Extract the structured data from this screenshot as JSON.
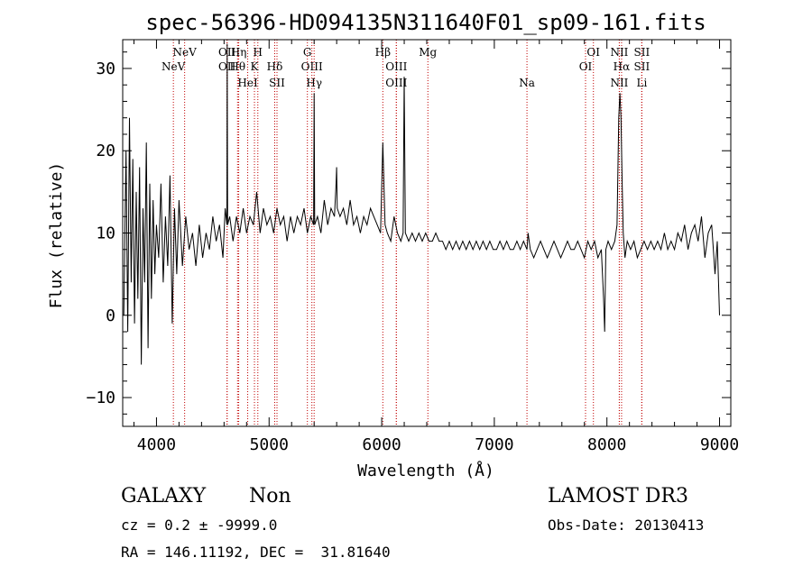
{
  "chart_data": {
    "type": "line",
    "title": "spec-56396-HD094135N311640F01_sp09-161.fits",
    "xlabel": "Wavelength (Å)",
    "ylabel": "Flux (relative)",
    "xlim": [
      3700,
      9100
    ],
    "ylim": [
      -13.5,
      33.5
    ],
    "xticks": [
      4000,
      5000,
      6000,
      7000,
      8000,
      9000
    ],
    "yticks": [
      -10,
      0,
      10,
      20,
      30
    ],
    "grid": false,
    "line_color": "#000000",
    "marker_color": "#c00000",
    "spectral_lines": [
      {
        "label": "NeV",
        "wavelength": 4150,
        "row": 1
      },
      {
        "label": "NeV",
        "wavelength": 4250,
        "row": 0
      },
      {
        "label": "OII",
        "wavelength": 4627,
        "row": 1
      },
      {
        "label": "OII",
        "wavelength": 4627,
        "row": 0
      },
      {
        "label": "Hη",
        "wavelength": 4730,
        "row": 0
      },
      {
        "label": "Hθ",
        "wavelength": 4720,
        "row": 1
      },
      {
        "label": "HeI",
        "wavelength": 4810,
        "row": 2
      },
      {
        "label": "H",
        "wavelength": 4900,
        "row": 0
      },
      {
        "label": "K",
        "wavelength": 4870,
        "row": 1
      },
      {
        "label": "Hδ",
        "wavelength": 5050,
        "row": 1
      },
      {
        "label": "SII",
        "wavelength": 5070,
        "row": 2
      },
      {
        "label": "G",
        "wavelength": 5340,
        "row": 0
      },
      {
        "label": "OIII",
        "wavelength": 5380,
        "row": 1
      },
      {
        "label": "Hγ",
        "wavelength": 5400,
        "row": 2
      },
      {
        "label": "Hβ",
        "wavelength": 6010,
        "row": 0
      },
      {
        "label": "OIII",
        "wavelength": 6130,
        "row": 1
      },
      {
        "label": "OIII",
        "wavelength": 6130,
        "row": 2
      },
      {
        "label": "Mg",
        "wavelength": 6410,
        "row": 0
      },
      {
        "label": "Na",
        "wavelength": 7290,
        "row": 2
      },
      {
        "label": "OI",
        "wavelength": 7880,
        "row": 0
      },
      {
        "label": "OI",
        "wavelength": 7810,
        "row": 1
      },
      {
        "label": "NII",
        "wavelength": 8110,
        "row": 0
      },
      {
        "label": "Hα",
        "wavelength": 8130,
        "row": 1
      },
      {
        "label": "NII",
        "wavelength": 8110,
        "row": 2
      },
      {
        "label": "SII",
        "wavelength": 8310,
        "row": 0
      },
      {
        "label": "SII",
        "wavelength": 8310,
        "row": 1
      },
      {
        "label": "Li",
        "wavelength": 8310,
        "row": 2
      }
    ],
    "series": [
      {
        "x": [
          3710,
          3730,
          3745,
          3760,
          3775,
          3790,
          3805,
          3820,
          3835,
          3850,
          3865,
          3880,
          3895,
          3910,
          3925,
          3940,
          3955,
          3970,
          3985,
          4000,
          4020,
          4040,
          4060,
          4080,
          4100,
          4120,
          4140,
          4160,
          4180,
          4200,
          4230,
          4260,
          4290,
          4320,
          4350,
          4380,
          4410,
          4440,
          4470,
          4500,
          4530,
          4560,
          4590,
          4610,
          4625,
          4628,
          4632,
          4650,
          4680,
          4710,
          4740,
          4770,
          4800,
          4830,
          4860,
          4890,
          4920,
          4950,
          4980,
          5010,
          5040,
          5070,
          5100,
          5130,
          5160,
          5190,
          5220,
          5250,
          5280,
          5310,
          5340,
          5370,
          5395,
          5400,
          5405,
          5430,
          5460,
          5490,
          5520,
          5550,
          5580,
          5595,
          5600,
          5605,
          5630,
          5660,
          5690,
          5720,
          5750,
          5780,
          5810,
          5840,
          5870,
          5900,
          5930,
          5960,
          5990,
          6010,
          6030,
          6050,
          6080,
          6110,
          6140,
          6170,
          6190,
          6200,
          6210,
          6240,
          6270,
          6300,
          6330,
          6360,
          6390,
          6420,
          6450,
          6480,
          6510,
          6540,
          6570,
          6600,
          6630,
          6660,
          6690,
          6720,
          6750,
          6780,
          6810,
          6840,
          6870,
          6900,
          6930,
          6960,
          6990,
          7020,
          7050,
          7080,
          7110,
          7140,
          7170,
          7200,
          7230,
          7260,
          7290,
          7300,
          7320,
          7350,
          7380,
          7410,
          7440,
          7470,
          7500,
          7530,
          7560,
          7590,
          7620,
          7650,
          7680,
          7710,
          7740,
          7770,
          7800,
          7830,
          7860,
          7890,
          7920,
          7950,
          7970,
          7980,
          7990,
          8010,
          8040,
          8070,
          8090,
          8105,
          8115,
          8125,
          8135,
          8145,
          8160,
          8180,
          8210,
          8240,
          8270,
          8300,
          8330,
          8360,
          8390,
          8420,
          8450,
          8480,
          8510,
          8540,
          8570,
          8600,
          8630,
          8660,
          8690,
          8720,
          8750,
          8780,
          8810,
          8840,
          8870,
          8900,
          8930,
          8960,
          8980,
          9000
        ],
        "y": [
          0,
          20,
          -2,
          24,
          4,
          19,
          -1,
          15,
          2,
          18,
          -6,
          13,
          4,
          21,
          -4,
          16,
          2,
          14,
          5,
          11,
          7,
          16,
          4,
          12,
          6,
          17,
          -1,
          13,
          5,
          14,
          6,
          12,
          8,
          10,
          6,
          11,
          7,
          10,
          8,
          12,
          9,
          11,
          7,
          13,
          11,
          33,
          11,
          12,
          9,
          12,
          10,
          13,
          10,
          12,
          11,
          15,
          10,
          13,
          11,
          12,
          10,
          13,
          11,
          12,
          9,
          12,
          10,
          12,
          11,
          13,
          10,
          12,
          11,
          27,
          11,
          12,
          10,
          14,
          11,
          13,
          12,
          16,
          18,
          13,
          12,
          13,
          11,
          14,
          11,
          12,
          10,
          12,
          11,
          13,
          12,
          11,
          10,
          21,
          11,
          10,
          9,
          12,
          10,
          9,
          10,
          29,
          10,
          9,
          10,
          9,
          10,
          9,
          10,
          9,
          9,
          10,
          9,
          9,
          8,
          9,
          8,
          9,
          8,
          9,
          8,
          9,
          8,
          9,
          8,
          9,
          8,
          9,
          8,
          8,
          9,
          8,
          9,
          8,
          8,
          9,
          8,
          9,
          8,
          10,
          8,
          7,
          8,
          9,
          8,
          7,
          8,
          9,
          8,
          7,
          8,
          9,
          8,
          8,
          9,
          8,
          7,
          9,
          8,
          9,
          7,
          8,
          2,
          -2,
          8,
          9,
          8,
          9,
          11,
          24,
          27,
          24,
          16,
          10,
          7,
          9,
          8,
          9,
          7,
          8,
          9,
          8,
          9,
          8,
          9,
          8,
          10,
          8,
          9,
          8,
          10,
          9,
          11,
          8,
          10,
          11,
          9,
          12,
          7,
          10,
          11,
          5,
          9,
          0
        ]
      }
    ]
  },
  "footer": {
    "object_class": "GALAXY",
    "subclass": "Non",
    "survey": "LAMOST DR3",
    "cz": "cz = 0.2 ± -9999.0",
    "obs_date": "Obs-Date: 20130413",
    "coords": "RA = 146.11192, DEC =  31.81640"
  }
}
